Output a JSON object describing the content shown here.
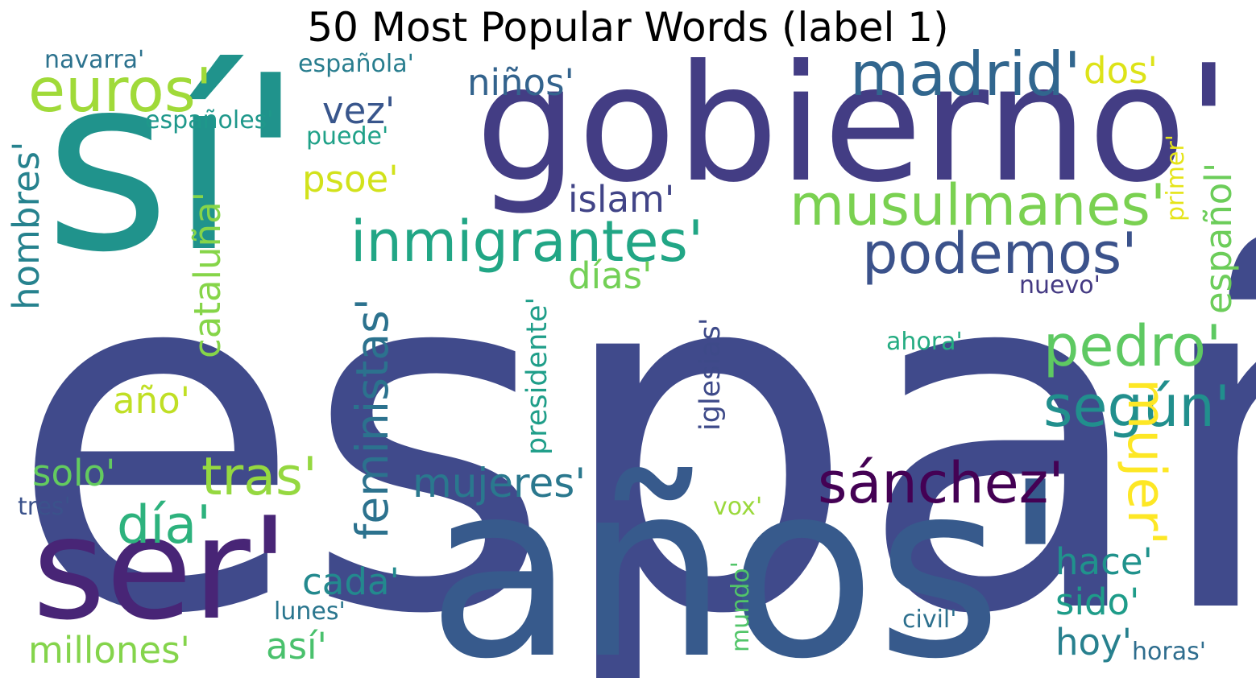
{
  "title": "50 Most Popular Words (label 1)",
  "words": [
    {
      "text": "españa'",
      "color": "#404A8B",
      "rotate": 0
    },
    {
      "text": "sí'",
      "color": "#20938C",
      "rotate": 0
    },
    {
      "text": "gobierno'",
      "color": "#433D84",
      "rotate": 0
    },
    {
      "text": "años'",
      "color": "#375A8C",
      "rotate": 0
    },
    {
      "text": "ser'",
      "color": "#482576",
      "rotate": 0
    },
    {
      "text": "madrid'",
      "color": "#31668E",
      "rotate": 0
    },
    {
      "text": "euros'",
      "color": "#A0DA39",
      "rotate": 0
    },
    {
      "text": "musulmanes'",
      "color": "#7AD151",
      "rotate": 0
    },
    {
      "text": "inmigrantes'",
      "color": "#21A685",
      "rotate": 0
    },
    {
      "text": "podemos'",
      "color": "#3B528B",
      "rotate": 0
    },
    {
      "text": "pedro'",
      "color": "#5EC962",
      "rotate": 0
    },
    {
      "text": "según'",
      "color": "#218F8D",
      "rotate": 0
    },
    {
      "text": "sánchez'",
      "color": "#440154",
      "rotate": 0
    },
    {
      "text": "tras'",
      "color": "#95D840",
      "rotate": 0
    },
    {
      "text": "día'",
      "color": "#2DB27D",
      "rotate": 0
    },
    {
      "text": "mujer'",
      "color": "#FDE725",
      "rotate": 90
    },
    {
      "text": "feministas'",
      "color": "#2C728E",
      "rotate": -90
    },
    {
      "text": "mujeres'",
      "color": "#2A788E",
      "rotate": 0
    },
    {
      "text": "niños'",
      "color": "#33638D",
      "rotate": 0
    },
    {
      "text": "cataluña'",
      "color": "#86D549",
      "rotate": -90
    },
    {
      "text": "español'",
      "color": "#6CCD5A",
      "rotate": -90
    },
    {
      "text": "hombres'",
      "color": "#26828E",
      "rotate": -90
    },
    {
      "text": "islam'",
      "color": "#414487",
      "rotate": 0
    },
    {
      "text": "psoe'",
      "color": "#D2E21B",
      "rotate": 0
    },
    {
      "text": "días'",
      "color": "#73D056",
      "rotate": 0
    },
    {
      "text": "vez'",
      "color": "#39568C",
      "rotate": 0
    },
    {
      "text": "dos'",
      "color": "#DDE318",
      "rotate": 0
    },
    {
      "text": "año'",
      "color": "#C0DF25",
      "rotate": 0
    },
    {
      "text": "solo'",
      "color": "#63CB5F",
      "rotate": 0
    },
    {
      "text": "cada'",
      "color": "#23898E",
      "rotate": 0
    },
    {
      "text": "hace'",
      "color": "#20928C",
      "rotate": 0
    },
    {
      "text": "sido'",
      "color": "#1E9C89",
      "rotate": 0
    },
    {
      "text": "hoy'",
      "color": "#27808E",
      "rotate": 0
    },
    {
      "text": "así'",
      "color": "#4AC16D",
      "rotate": 0
    },
    {
      "text": "millones'",
      "color": "#84D44B",
      "rotate": 0
    },
    {
      "text": "iglesias'",
      "color": "#3E4A89",
      "rotate": -90
    },
    {
      "text": "presidente'",
      "color": "#1F9E89",
      "rotate": -90
    },
    {
      "text": "ahora'",
      "color": "#25AC82",
      "rotate": 0
    },
    {
      "text": "nuevo'",
      "color": "#443A83",
      "rotate": 0
    },
    {
      "text": "primer'",
      "color": "#E5E419",
      "rotate": -90
    },
    {
      "text": "navarra'",
      "color": "#2C728E",
      "rotate": 0
    },
    {
      "text": "española'",
      "color": "#287D8E",
      "rotate": 0
    },
    {
      "text": "españoles'",
      "color": "#1F988B",
      "rotate": 0
    },
    {
      "text": "puede'",
      "color": "#1FA188",
      "rotate": 0
    },
    {
      "text": "vox'",
      "color": "#9BD93C",
      "rotate": 0
    },
    {
      "text": "tres'",
      "color": "#3B528B",
      "rotate": 0
    },
    {
      "text": "mundo'",
      "color": "#52C569",
      "rotate": -90
    },
    {
      "text": "lunes'",
      "color": "#2A768E",
      "rotate": 0
    },
    {
      "text": "civil'",
      "color": "#2D708E",
      "rotate": 0
    },
    {
      "text": "horas'",
      "color": "#2E6D8E",
      "rotate": 0
    }
  ]
}
